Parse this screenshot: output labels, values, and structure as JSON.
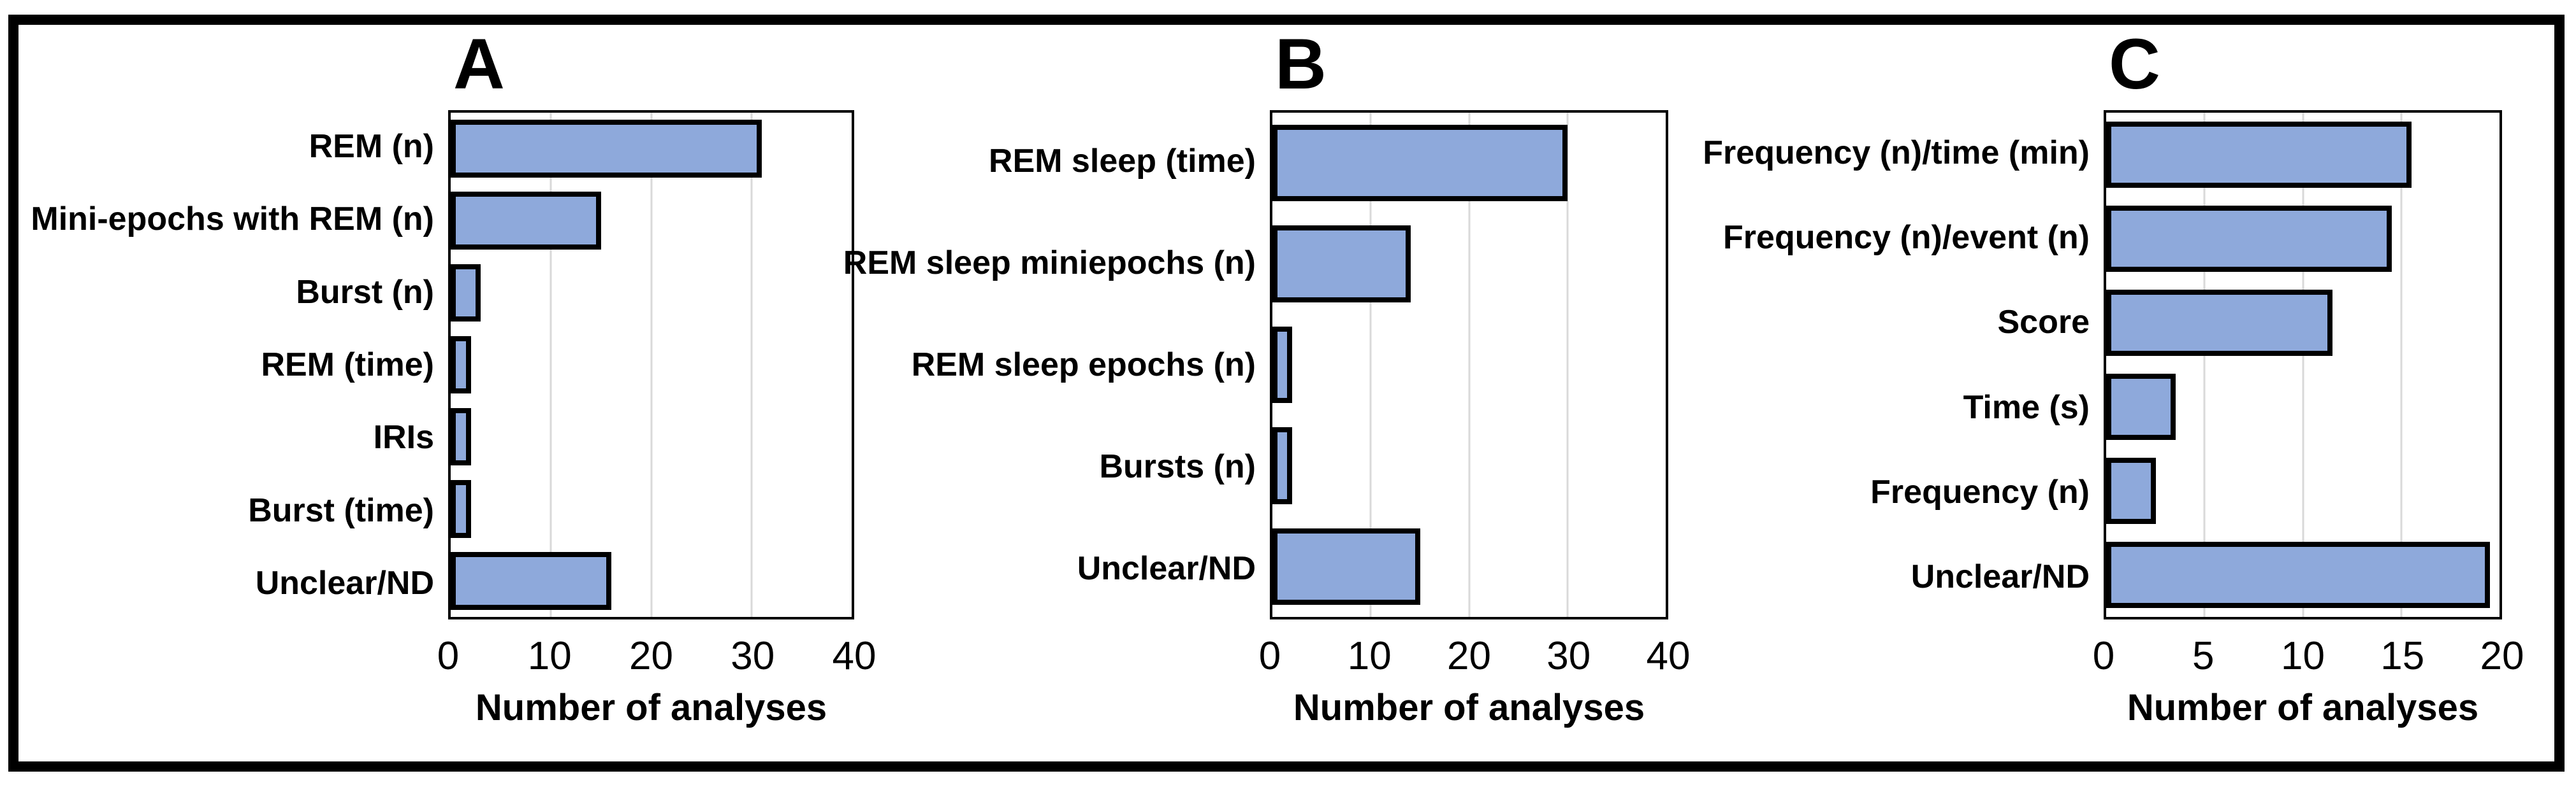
{
  "figure": {
    "description": "Three-panel horizontal bar figure",
    "shared_axis_label": "Number of analyses",
    "panel_labels": [
      "A",
      "B",
      "C"
    ]
  },
  "colors": {
    "bar_fill": "#8EA9DB",
    "bar_border": "#000000",
    "gridline": "#D9D9D9",
    "plot_border": "#000000",
    "frame_border": "#000000",
    "text": "#000000",
    "background": "#FFFFFF"
  },
  "chart_data": [
    {
      "type": "bar",
      "orientation": "horizontal",
      "panel_label": "A",
      "title": "A",
      "categories": [
        "REM (n)",
        "Mini-epochs with REM (n)",
        "Burst (n)",
        "REM (time)",
        "IRIs",
        "Burst (time)",
        "Unclear/ND"
      ],
      "values": [
        30,
        14,
        2,
        1,
        1,
        1,
        15
      ],
      "xlabel": "Number of analyses",
      "ylabel": "",
      "xlim": [
        0,
        40
      ],
      "xticks": [
        0,
        10,
        20,
        30,
        40
      ],
      "grid": true,
      "legend": false
    },
    {
      "type": "bar",
      "orientation": "horizontal",
      "panel_label": "B",
      "title": "B",
      "categories": [
        "REM sleep (time)",
        "REM sleep miniepochs (n)",
        "REM sleep epochs (n)",
        "Bursts (n)",
        "Unclear/ND"
      ],
      "values": [
        29,
        13,
        1,
        1,
        14
      ],
      "xlabel": "Number of analyses",
      "ylabel": "",
      "xlim": [
        0,
        40
      ],
      "xticks": [
        0,
        10,
        20,
        30,
        40
      ],
      "grid": true,
      "legend": false
    },
    {
      "type": "bar",
      "orientation": "horizontal",
      "panel_label": "C",
      "title": "C",
      "categories": [
        "Frequency (n)/time (min)",
        "Frequency (n)/event (n)",
        "Score",
        "Time (s)",
        "Frequency (n)",
        "Unclear/ND"
      ],
      "values": [
        15,
        14,
        11,
        3,
        2,
        19
      ],
      "xlabel": "Number of analyses",
      "ylabel": "",
      "xlim": [
        0,
        20
      ],
      "xticks": [
        0,
        5,
        10,
        15,
        20
      ],
      "grid": true,
      "legend": false
    }
  ]
}
